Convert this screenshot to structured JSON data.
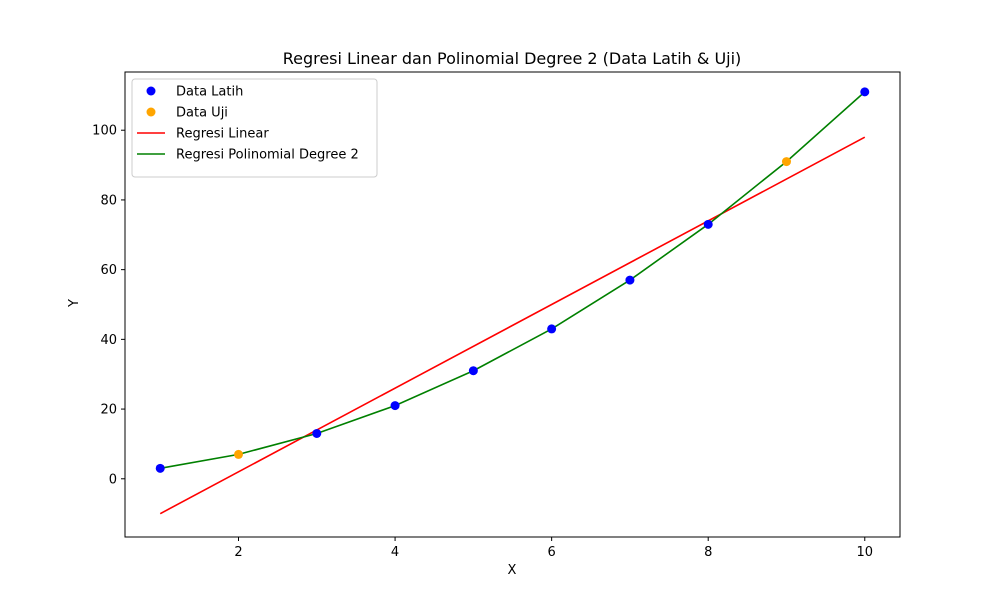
{
  "chart_data": {
    "type": "scatter",
    "title": "Regresi Linear dan Polinomial Degree 2 (Data Latih & Uji)",
    "xlabel": "X",
    "ylabel": "Y",
    "xlim": [
      0.55,
      10.45
    ],
    "ylim": [
      -16.7,
      116.7
    ],
    "x_ticks": [
      2,
      4,
      6,
      8,
      10
    ],
    "y_ticks": [
      0,
      20,
      40,
      60,
      80,
      100
    ],
    "grid": false,
    "legend_position": "upper left",
    "series": [
      {
        "name": "Data Latih",
        "kind": "scatter",
        "color": "#0000ff",
        "x": [
          1,
          3,
          4,
          5,
          6,
          7,
          8,
          10
        ],
        "y": [
          3,
          13,
          21,
          31,
          43,
          57,
          73,
          111
        ]
      },
      {
        "name": "Data Uji",
        "kind": "scatter",
        "color": "#ffa500",
        "x": [
          2,
          9
        ],
        "y": [
          7,
          91
        ]
      },
      {
        "name": "Regresi Linear",
        "kind": "line",
        "color": "#ff0000",
        "x": [
          1,
          10
        ],
        "y": [
          -10,
          98
        ]
      },
      {
        "name": "Regresi Polinomial Degree 2",
        "kind": "line",
        "color": "#008000",
        "x": [
          1,
          2,
          3,
          4,
          5,
          6,
          7,
          8,
          9,
          10
        ],
        "y": [
          3,
          7,
          13,
          21,
          31,
          43,
          57,
          73,
          91,
          111
        ]
      }
    ]
  }
}
